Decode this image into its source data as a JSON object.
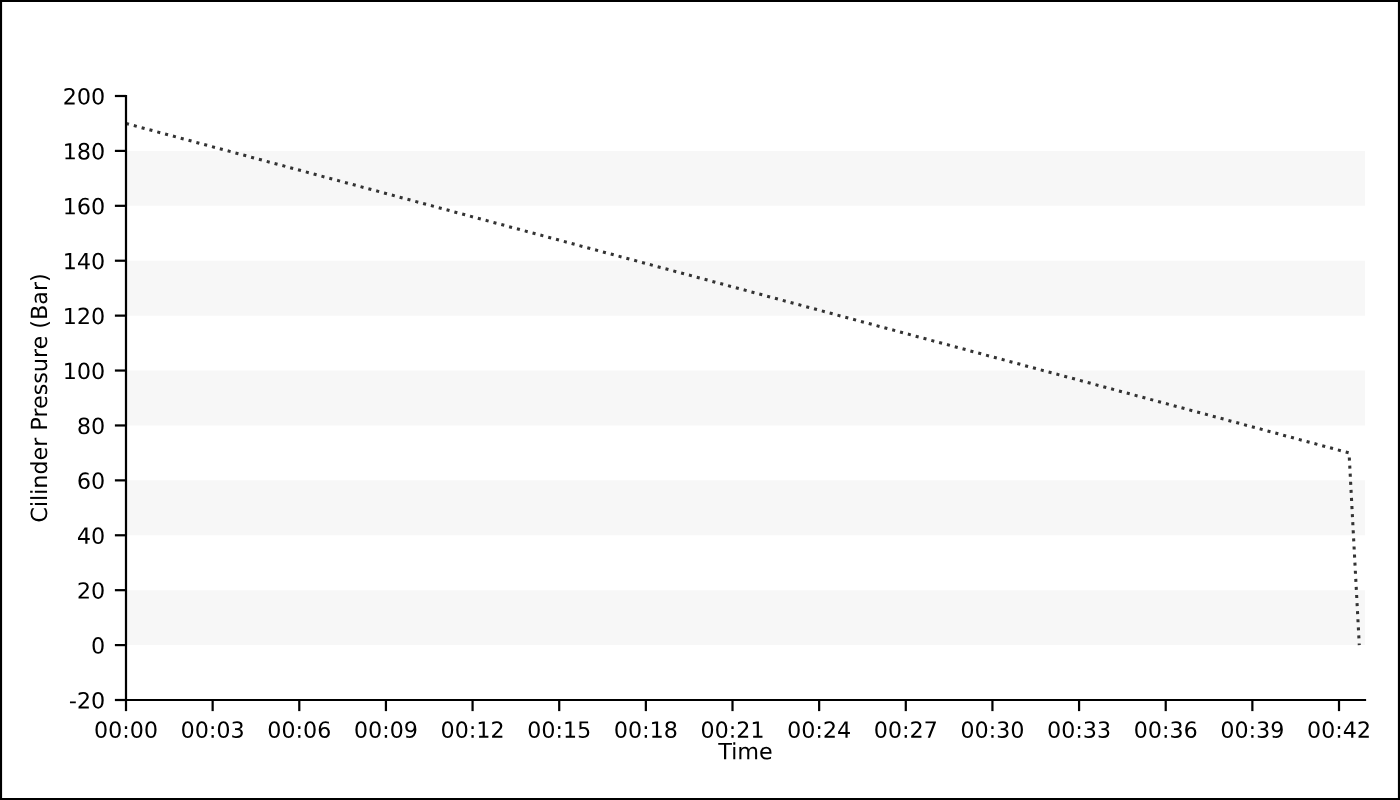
{
  "chart_data": {
    "type": "line",
    "xlabel": "Time",
    "ylabel": "Cilinder Pressure (Bar)",
    "x": [
      0,
      0.7058,
      0.7117
    ],
    "series": [
      {
        "color": "#333333",
        "values": [
          190,
          70,
          0
        ]
      }
    ],
    "line_style": "dotted",
    "marker": "none",
    "xlim": [
      0,
      0.715
    ],
    "xticks": [
      {
        "value": 0,
        "label": "00:00"
      },
      {
        "value": 0.05,
        "label": "00:03"
      },
      {
        "value": 0.1,
        "label": "00:06"
      },
      {
        "value": 0.15,
        "label": "00:09"
      },
      {
        "value": 0.2,
        "label": "00:12"
      },
      {
        "value": 0.25,
        "label": "00:15"
      },
      {
        "value": 0.3,
        "label": "00:18"
      },
      {
        "value": 0.35,
        "label": "00:21"
      },
      {
        "value": 0.4,
        "label": "00:24"
      },
      {
        "value": 0.45,
        "label": "00:27"
      },
      {
        "value": 0.5,
        "label": "00:30"
      },
      {
        "value": 0.55,
        "label": "00:33"
      },
      {
        "value": 0.6,
        "label": "00:36"
      },
      {
        "value": 0.65,
        "label": "00:39"
      },
      {
        "value": 0.7,
        "label": "00:42"
      }
    ],
    "ylim": [
      -20,
      200
    ],
    "yticks": [
      -20,
      0,
      20,
      40,
      60,
      80,
      100,
      120,
      140,
      160,
      180,
      200
    ],
    "bands": [
      {
        "axis": "y",
        "from": 0,
        "to": 20,
        "color": "#f7f7f7"
      },
      {
        "axis": "y",
        "from": 40,
        "to": 60,
        "color": "#f7f7f7"
      },
      {
        "axis": "y",
        "from": 80,
        "to": 100,
        "color": "#f7f7f7"
      },
      {
        "axis": "y",
        "from": 120,
        "to": 140,
        "color": "#f7f7f7"
      },
      {
        "axis": "y",
        "from": 160,
        "to": 180,
        "color": "#f7f7f7"
      }
    ],
    "grid": false,
    "legend": false
  }
}
